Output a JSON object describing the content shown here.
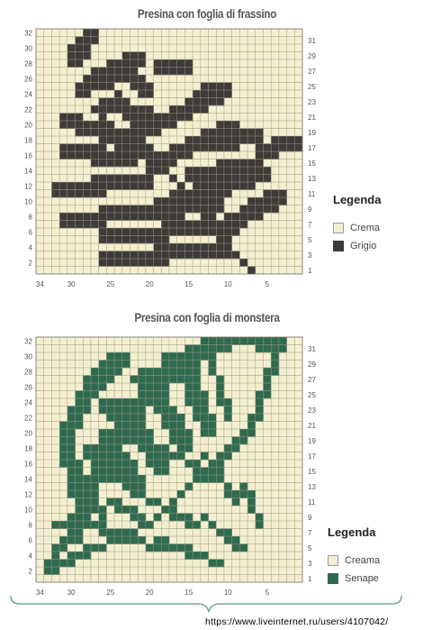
{
  "chart_data": [
    {
      "type": "heatmap",
      "title": "Presina con foglia di frassino",
      "columns": 34,
      "rows": 32,
      "x_tick_labels": [
        "34",
        "30",
        "25",
        "20",
        "15",
        "10",
        "5"
      ],
      "y_tick_labels_left": [
        "32",
        "30",
        "28",
        "26",
        "24",
        "22",
        "20",
        "18",
        "16",
        "14",
        "12",
        "10",
        "8",
        "6",
        "4",
        "2"
      ],
      "y_tick_labels_right": [
        "31",
        "29",
        "27",
        "25",
        "23",
        "21",
        "19",
        "17",
        "15",
        "13",
        "11",
        "9",
        "7",
        "5",
        "3",
        "1"
      ],
      "background_color": "#f4efcf",
      "fill_color": "#3e3b38",
      "grid": true,
      "legend": {
        "title": "Legenda",
        "items": [
          {
            "label": "Crema",
            "color": "#f4efcf"
          },
          {
            "label": "Grigio",
            "color": "#3e3b38"
          }
        ]
      }
    },
    {
      "type": "heatmap",
      "title": "Presina con foglia di monstera",
      "columns": 34,
      "rows": 32,
      "x_tick_labels": [
        "34",
        "30",
        "25",
        "20",
        "15",
        "10",
        "5"
      ],
      "y_tick_labels_left": [
        "32",
        "30",
        "28",
        "26",
        "24",
        "22",
        "20",
        "18",
        "16",
        "14",
        "12",
        "10",
        "8",
        "6",
        "4",
        "2"
      ],
      "y_tick_labels_right": [
        "31",
        "29",
        "27",
        "25",
        "23",
        "21",
        "19",
        "17",
        "15",
        "13",
        "11",
        "9",
        "7",
        "5",
        "3",
        "1"
      ],
      "background_color": "#f4efcf",
      "fill_color": "#2f6a4f",
      "grid": true,
      "legend": {
        "title": "Legenda",
        "items": [
          {
            "label": "Creama",
            "color": "#f4efcf"
          },
          {
            "label": "Senape",
            "color": "#2f6a4f"
          }
        ]
      }
    }
  ],
  "footer": {
    "url": "https://www.liveinternet.ru/users/4107042/"
  }
}
